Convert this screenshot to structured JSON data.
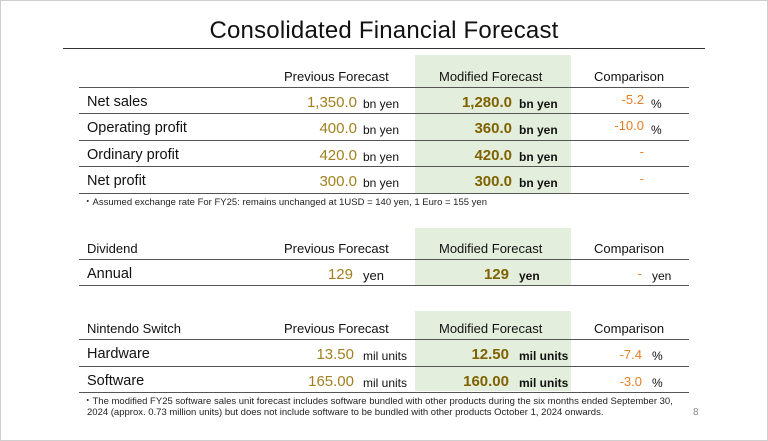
{
  "title": "Consolidated Financial Forecast",
  "headers": {
    "previous": "Previous Forecast",
    "modified": "Modified Forecast",
    "comparison": "Comparison"
  },
  "financial": {
    "rows": [
      {
        "label": "Net sales",
        "previous": "1,350.0",
        "prev_unit": "bn yen",
        "modified": "1,280.0",
        "mod_unit": "bn yen",
        "comparison": "-5.2",
        "cmp_unit": "%"
      },
      {
        "label": "Operating profit",
        "previous": "400.0",
        "prev_unit": "bn yen",
        "modified": "360.0",
        "mod_unit": "bn yen",
        "comparison": "-10.0",
        "cmp_unit": "%"
      },
      {
        "label": "Ordinary profit",
        "previous": "420.0",
        "prev_unit": "bn yen",
        "modified": "420.0",
        "mod_unit": "bn yen",
        "comparison": "-",
        "cmp_unit": ""
      },
      {
        "label": "Net profit",
        "previous": "300.0",
        "prev_unit": "bn yen",
        "modified": "300.0",
        "mod_unit": "bn yen",
        "comparison": "-",
        "cmp_unit": ""
      }
    ],
    "note": "・Assumed exchange rate For FY25: remains unchanged at 1USD = 140 yen, 1 Euro = 155 yen"
  },
  "dividend": {
    "header": "Dividend",
    "row": {
      "label": "Annual",
      "previous": "129",
      "prev_unit": "yen",
      "modified": "129",
      "mod_unit": "yen",
      "comparison": "-",
      "cmp_unit": "yen"
    }
  },
  "switch": {
    "header": "Nintendo Switch",
    "rows": [
      {
        "label": "Hardware",
        "previous": "13.50",
        "prev_unit": "mil units",
        "modified": "12.50",
        "mod_unit": "mil units",
        "comparison": "-7.4",
        "cmp_unit": "%"
      },
      {
        "label": "Software",
        "previous": "165.00",
        "prev_unit": "mil units",
        "modified": "160.00",
        "mod_unit": "mil units",
        "comparison": "-3.0",
        "cmp_unit": "%"
      }
    ],
    "note_line1": "・The modified FY25 software sales unit forecast includes software bundled with other products during the six months ended September 30,",
    "note_line2": "2024 (approx. 0.73 million units) but does not include software to be bundled with other products October 1, 2024 onwards."
  },
  "page_number": "8",
  "colors": {
    "green_column": "#e3efdc",
    "previous_value": "#a08020",
    "modified_value": "#7f6100",
    "comparison_value": "#e67e22"
  }
}
